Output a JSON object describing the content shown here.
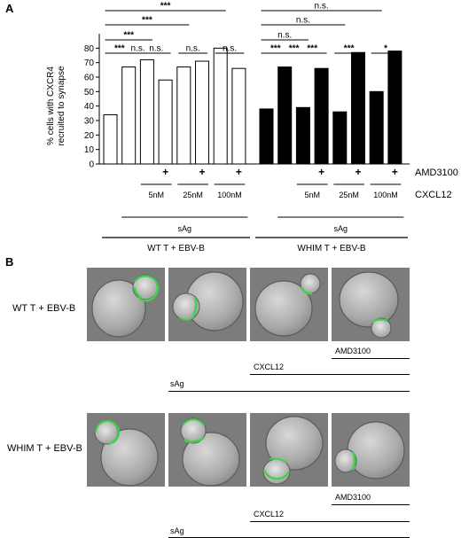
{
  "panel_a": {
    "letter": "A",
    "chart_data": {
      "type": "bar",
      "ylabel": "% cells with CXCR4 recruited to synapse",
      "ylim": [
        0,
        90
      ],
      "yticks": [
        0,
        10,
        20,
        30,
        40,
        50,
        60,
        70,
        80
      ],
      "groups": [
        {
          "name": "WT T + EBV-B",
          "fill": "#ffffff",
          "values": [
            34,
            67,
            72,
            58,
            67,
            71,
            80,
            66
          ]
        },
        {
          "name": "WHIM T + EBV-B",
          "fill": "#000000",
          "values": [
            38,
            67,
            39,
            66,
            36,
            77,
            50,
            78
          ]
        }
      ],
      "amd3100_row_label": "AMD3100",
      "amd3100_mark": "+",
      "amd3100_bars": [
        3,
        5,
        7
      ],
      "cxcl12_row_label": "CXCL12",
      "cxcl12_doses": [
        {
          "label": "5nM",
          "bars": [
            2,
            3
          ]
        },
        {
          "label": "25nM",
          "bars": [
            4,
            5
          ]
        },
        {
          "label": "100nM",
          "bars": [
            6,
            7
          ]
        }
      ],
      "sag_label": "sAg",
      "significance": [
        {
          "group": 0,
          "a": 0,
          "b": 1,
          "label": "***",
          "level": 0
        },
        {
          "group": 0,
          "a": 1,
          "b": 2,
          "label": "n.s.",
          "level": 0
        },
        {
          "group": 0,
          "a": 2,
          "b": 3,
          "label": "n.s.",
          "level": 0
        },
        {
          "group": 0,
          "a": 4,
          "b": 5,
          "label": "n.s.",
          "level": 0
        },
        {
          "group": 0,
          "a": 6,
          "b": 7,
          "label": "n.s.",
          "level": 0
        },
        {
          "group": 0,
          "a": 0,
          "b": 2,
          "label": "***",
          "level": 1
        },
        {
          "group": 0,
          "a": 0,
          "b": 4,
          "label": "***",
          "level": 2
        },
        {
          "group": 0,
          "a": 0,
          "b": 6,
          "label": "***",
          "level": 3
        },
        {
          "group": 1,
          "a": 0,
          "b": 1,
          "label": "***",
          "level": 0
        },
        {
          "group": 1,
          "a": 1,
          "b": 2,
          "label": "***",
          "level": 0
        },
        {
          "group": 1,
          "a": 2,
          "b": 3,
          "label": "***",
          "level": 0
        },
        {
          "group": 1,
          "a": 4,
          "b": 5,
          "label": "***",
          "level": 0
        },
        {
          "group": 1,
          "a": 6,
          "b": 7,
          "label": "*",
          "level": 0
        },
        {
          "group": 1,
          "a": 0,
          "b": 2,
          "label": "n.s.",
          "level": 1
        },
        {
          "group": 1,
          "a": 0,
          "b": 4,
          "label": "n.s.",
          "level": 2
        },
        {
          "group": 1,
          "a": 0,
          "b": 6,
          "label": "n.s.",
          "level": 3
        }
      ]
    }
  },
  "panel_b": {
    "letter": "B",
    "rows": [
      {
        "label": "WT T + EBV-B",
        "images": [
          {
            "name": "wt-untreated"
          },
          {
            "name": "wt-sag"
          },
          {
            "name": "wt-sag-cxcl12"
          },
          {
            "name": "wt-sag-cxcl12-amd3100"
          }
        ],
        "amd3100_label": "AMD3100",
        "cxcl12_label": "CXCL12",
        "sag_label": "sAg"
      },
      {
        "label": "WHIM T + EBV-B",
        "images": [
          {
            "name": "whim-untreated"
          },
          {
            "name": "whim-sag"
          },
          {
            "name": "whim-sag-cxcl12"
          },
          {
            "name": "whim-sag-cxcl12-amd3100"
          }
        ],
        "amd3100_label": "AMD3100",
        "cxcl12_label": "CXCL12",
        "sag_label": "sAg"
      }
    ],
    "colors": {
      "cxcr4_signal": "#3fd24a",
      "dic_background": "#7c7c7c"
    }
  }
}
